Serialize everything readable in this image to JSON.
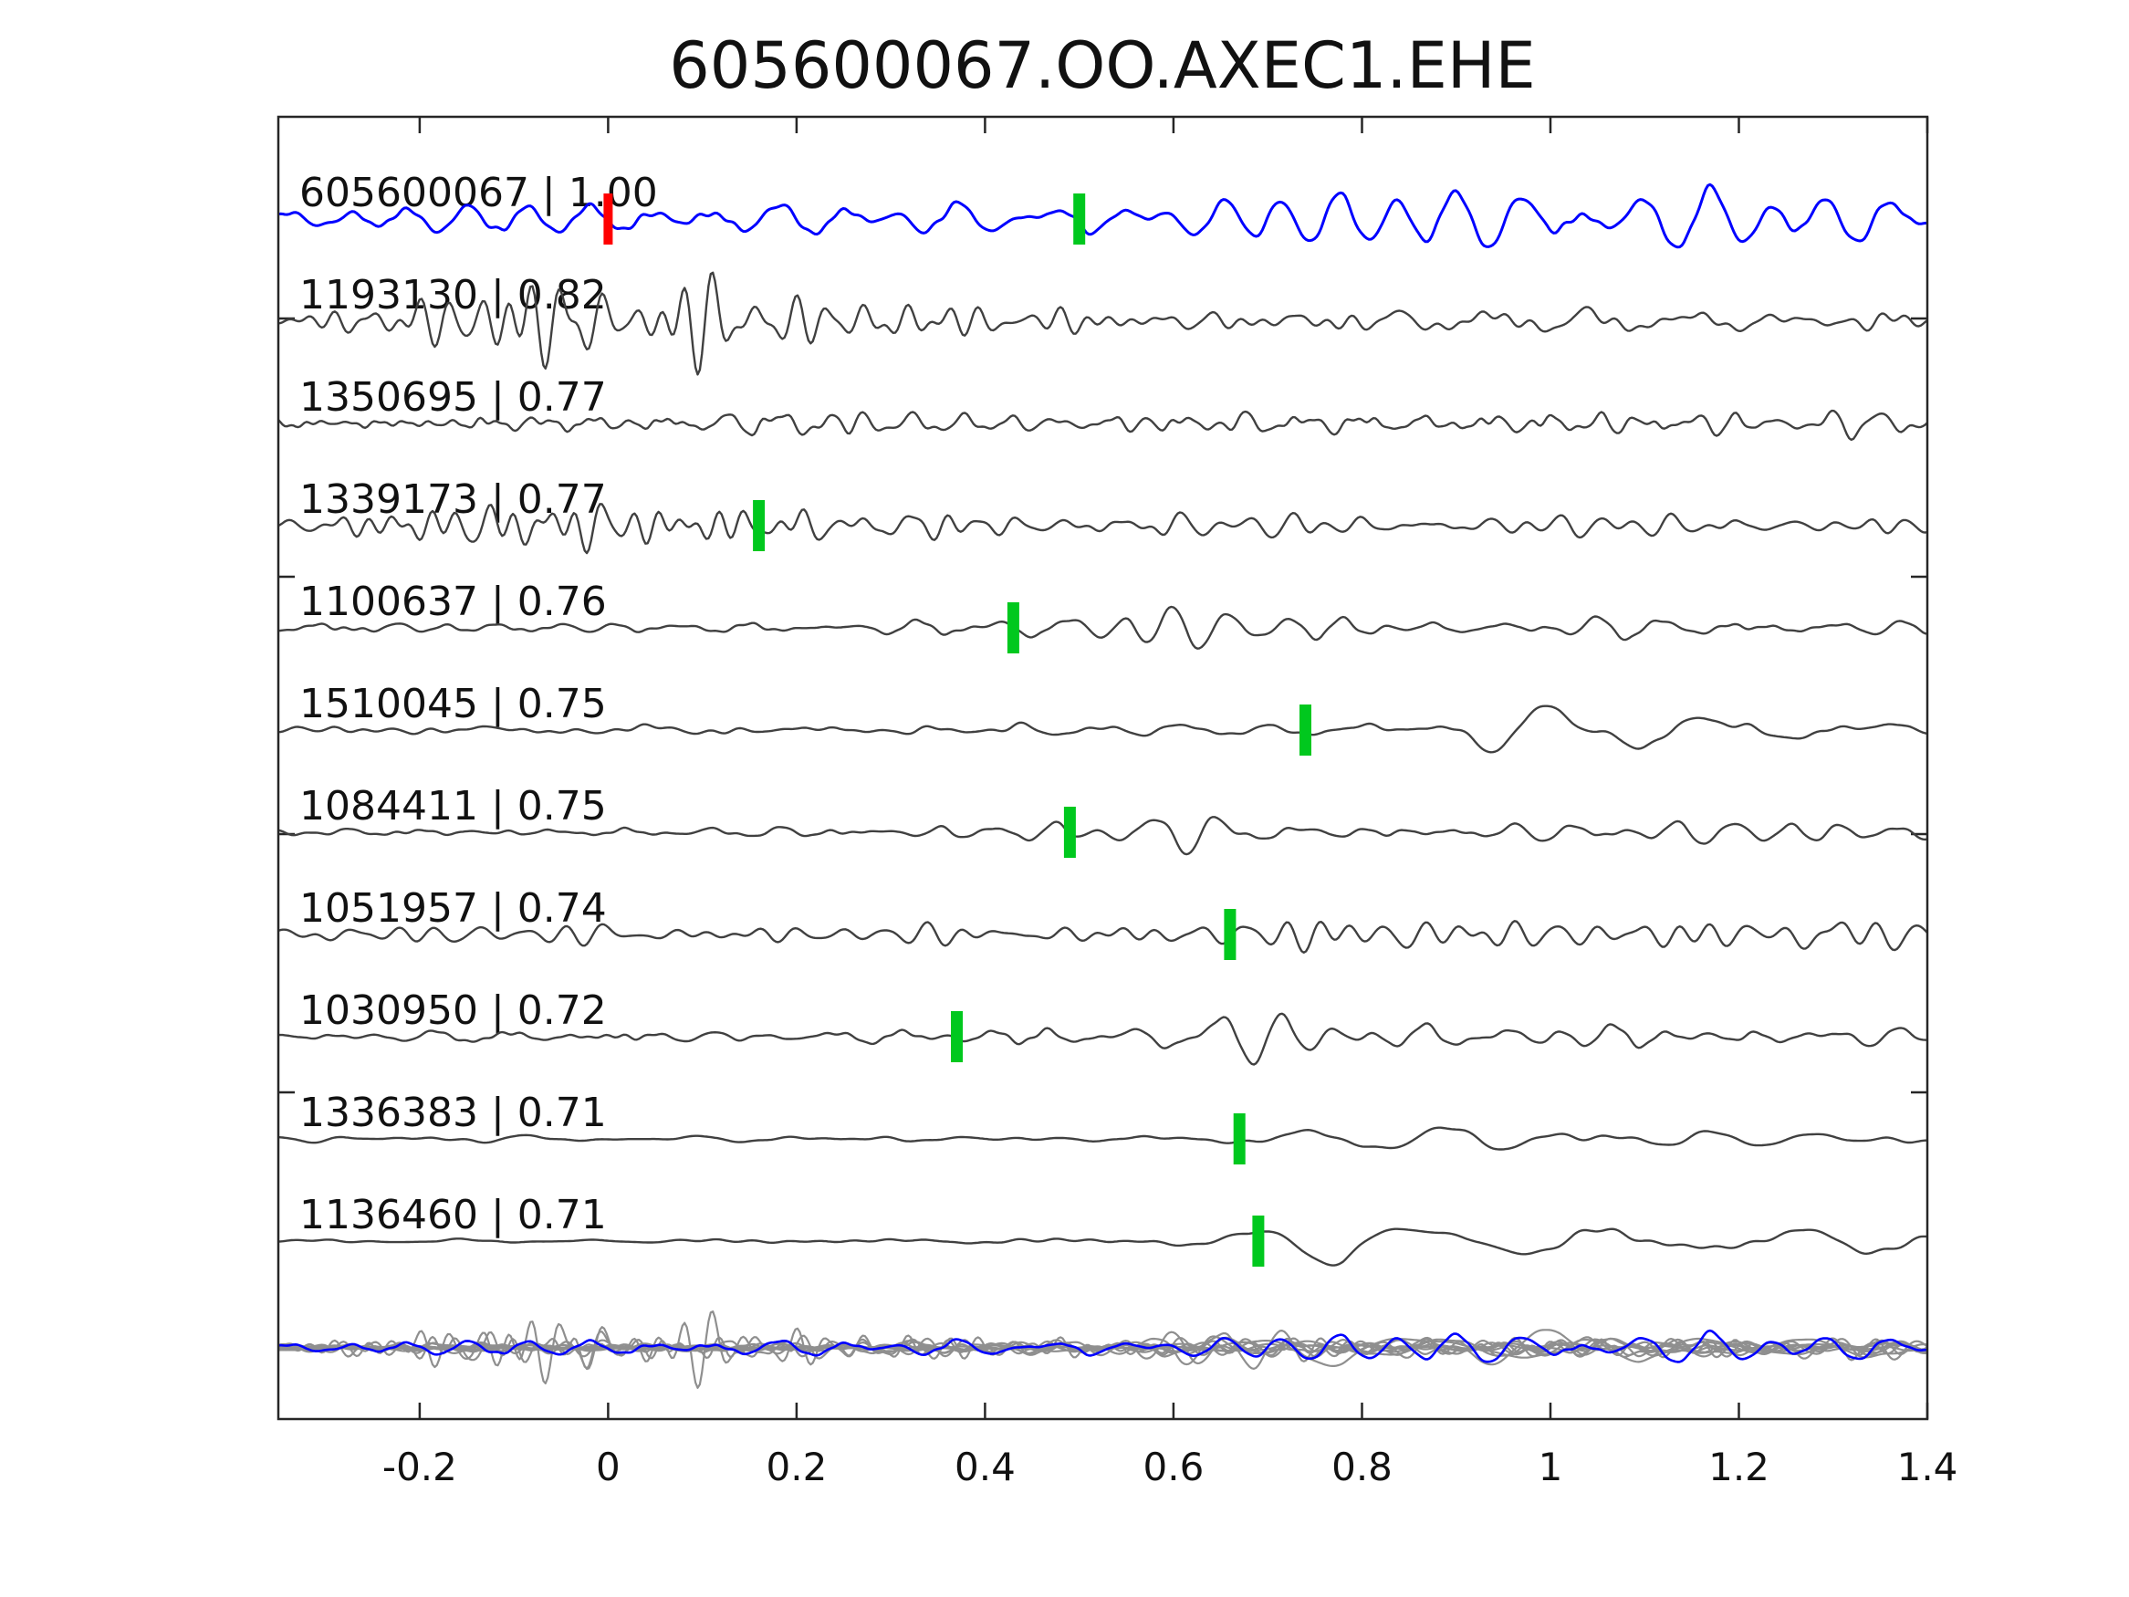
{
  "chart_data": {
    "type": "line",
    "title": "605600067.OO.AXEC1.EHE",
    "xlabel": "",
    "ylabel": "",
    "grid": false,
    "xlim": [
      -0.35,
      1.4
    ],
    "x_ticks": [
      -0.2,
      0,
      0.2,
      0.4,
      0.6,
      0.8,
      1,
      1.2,
      1.4
    ],
    "x_tick_labels": [
      "-0.2",
      "0",
      "0.2",
      "0.4",
      "0.6",
      "0.8",
      "1",
      "1.2",
      "1.4"
    ],
    "colors": {
      "template": "#0000ff",
      "detection": "#404040",
      "overlay_detection": "#8f8f8f",
      "pick_marker": "#00c81e",
      "template_start_marker": "#ff0000",
      "axis": "#262626",
      "text": "#111111",
      "background": "#ffffff"
    },
    "traces": [
      {
        "id": "605600067",
        "correlation": "1.00",
        "label": "605600067 | 1.00",
        "role": "template",
        "color": "#0000ff",
        "template_start_x": 0,
        "pick_x": 0.5,
        "synth": {
          "seed": 11,
          "bands": [
            {
              "freq": 16,
              "env": [
                [
                  -0.35,
                  14
                ],
                [
                  -0.1,
                  15
                ],
                [
                  0.05,
                  17
                ],
                [
                  0.3,
                  20
                ],
                [
                  0.45,
                  26
                ],
                [
                  0.55,
                  38
                ],
                [
                  0.68,
                  46
                ],
                [
                  0.8,
                  40
                ],
                [
                  0.95,
                  36
                ],
                [
                  1.1,
                  32
                ],
                [
                  1.25,
                  36
                ],
                [
                  1.4,
                  28
                ]
              ]
            },
            {
              "freq": 42,
              "env": [
                [
                  -0.35,
                  4
                ],
                [
                  1.4,
                  4
                ]
              ]
            }
          ]
        }
      },
      {
        "id": "1193130",
        "correlation": "0.82",
        "label": "1193130 | 0.82",
        "role": "detection",
        "color": "#404040",
        "template_start_x": null,
        "pick_x": null,
        "synth": {
          "seed": 22,
          "bands": [
            {
              "freq": 34,
              "env": [
                [
                  -0.35,
                  6
                ],
                [
                  -0.28,
                  22
                ],
                [
                  -0.2,
                  42
                ],
                [
                  -0.12,
                  55
                ],
                [
                  -0.02,
                  64
                ],
                [
                  0.08,
                  60
                ],
                [
                  0.18,
                  48
                ],
                [
                  0.28,
                  34
                ],
                [
                  0.38,
                  22
                ],
                [
                  0.5,
                  15
                ],
                [
                  0.7,
                  11
                ],
                [
                  1.0,
                  9
                ],
                [
                  1.4,
                  8
                ]
              ]
            },
            {
              "freq": 16,
              "env": [
                [
                  -0.35,
                  3
                ],
                [
                  0.3,
                  6
                ],
                [
                  0.5,
                  10
                ],
                [
                  0.8,
                  12
                ],
                [
                  1.1,
                  12
                ],
                [
                  1.4,
                  10
                ]
              ]
            }
          ]
        }
      },
      {
        "id": "1350695",
        "correlation": "0.77",
        "label": "1350695 | 0.77",
        "role": "detection",
        "color": "#404040",
        "template_start_x": null,
        "pick_x": null,
        "synth": {
          "seed": 33,
          "bands": [
            {
              "freq": 26,
              "env": [
                [
                  -0.35,
                  11
                ],
                [
                  0.15,
                  12
                ],
                [
                  0.22,
                  30
                ],
                [
                  0.28,
                  20
                ],
                [
                  0.45,
                  16
                ],
                [
                  0.7,
                  16
                ],
                [
                  1.0,
                  18
                ],
                [
                  1.2,
                  20
                ],
                [
                  1.4,
                  16
                ]
              ]
            },
            {
              "freq": 52,
              "env": [
                [
                  -0.35,
                  3
                ],
                [
                  0.2,
                  5
                ],
                [
                  0.35,
                  3
                ],
                [
                  1.4,
                  3
                ]
              ]
            }
          ]
        }
      },
      {
        "id": "1339173",
        "correlation": "0.77",
        "label": "1339173 | 0.77",
        "role": "detection",
        "color": "#404040",
        "template_start_x": null,
        "pick_x": 0.16,
        "synth": {
          "seed": 44,
          "bands": [
            {
              "freq": 32,
              "env": [
                [
                  -0.35,
                  7
                ],
                [
                  -0.25,
                  14
                ],
                [
                  -0.15,
                  34
                ],
                [
                  -0.05,
                  40
                ],
                [
                  0.05,
                  34
                ],
                [
                  0.15,
                  22
                ],
                [
                  0.3,
                  10
                ],
                [
                  0.5,
                  4
                ],
                [
                  1.4,
                  2
                ]
              ]
            },
            {
              "freq": 19,
              "env": [
                [
                  -0.35,
                  6
                ],
                [
                  0.2,
                  14
                ],
                [
                  0.5,
                  18
                ],
                [
                  0.8,
                  18
                ],
                [
                  1.1,
                  18
                ],
                [
                  1.4,
                  16
                ]
              ]
            }
          ]
        }
      },
      {
        "id": "1100637",
        "correlation": "0.76",
        "label": "1100637 | 0.76",
        "role": "detection",
        "color": "#404040",
        "template_start_x": null,
        "pick_x": 0.43,
        "synth": {
          "seed": 55,
          "bands": [
            {
              "freq": 18,
              "env": [
                [
                  -0.35,
                  7
                ],
                [
                  0.2,
                  8
                ],
                [
                  0.4,
                  10
                ],
                [
                  0.48,
                  22
                ],
                [
                  0.57,
                  30
                ],
                [
                  0.68,
                  18
                ],
                [
                  0.85,
                  12
                ],
                [
                  1.0,
                  14
                ],
                [
                  1.2,
                  11
                ],
                [
                  1.4,
                  9
                ]
              ]
            },
            {
              "freq": 40,
              "env": [
                [
                  -0.35,
                  2
                ],
                [
                  1.4,
                  2
                ]
              ]
            }
          ]
        }
      },
      {
        "id": "1510045",
        "correlation": "0.75",
        "label": "1510045 | 0.75",
        "role": "detection",
        "color": "#404040",
        "template_start_x": null,
        "pick_x": 0.74,
        "synth": {
          "seed": 66,
          "bands": [
            {
              "freq": 9,
              "env": [
                [
                  -0.35,
                  4
                ],
                [
                  0.4,
                  5
                ],
                [
                  0.65,
                  6
                ],
                [
                  0.78,
                  16
                ],
                [
                  0.88,
                  38
                ],
                [
                  1.0,
                  44
                ],
                [
                  1.1,
                  30
                ],
                [
                  1.25,
                  16
                ],
                [
                  1.4,
                  14
                ]
              ]
            },
            {
              "freq": 28,
              "env": [
                [
                  -0.35,
                  3
                ],
                [
                  0.6,
                  4
                ],
                [
                  1.4,
                  3
                ]
              ]
            }
          ]
        }
      },
      {
        "id": "1084411",
        "correlation": "0.75",
        "label": "1084411 | 0.75",
        "role": "detection",
        "color": "#404040",
        "template_start_x": null,
        "pick_x": 0.49,
        "synth": {
          "seed": 77,
          "bands": [
            {
              "freq": 18,
              "env": [
                [
                  -0.35,
                  8
                ],
                [
                  0.2,
                  9
                ],
                [
                  0.42,
                  11
                ],
                [
                  0.5,
                  24
                ],
                [
                  0.6,
                  36
                ],
                [
                  0.72,
                  26
                ],
                [
                  0.85,
                  14
                ],
                [
                  1.05,
                  12
                ],
                [
                  1.25,
                  13
                ],
                [
                  1.4,
                  10
                ]
              ]
            },
            {
              "freq": 42,
              "env": [
                [
                  -0.35,
                  2
                ],
                [
                  1.4,
                  2
                ]
              ]
            }
          ]
        }
      },
      {
        "id": "1051957",
        "correlation": "0.74",
        "label": "1051957 | 0.74",
        "role": "detection",
        "color": "#404040",
        "template_start_x": null,
        "pick_x": 0.66,
        "synth": {
          "seed": 88,
          "bands": [
            {
              "freq": 26,
              "env": [
                [
                  -0.35,
                  11
                ],
                [
                  0.2,
                  13
                ],
                [
                  0.5,
                  14
                ],
                [
                  0.62,
                  18
                ],
                [
                  0.72,
                  30
                ],
                [
                  0.85,
                  24
                ],
                [
                  1.0,
                  22
                ],
                [
                  1.2,
                  22
                ],
                [
                  1.4,
                  16
                ]
              ]
            },
            {
              "freq": 10,
              "env": [
                [
                  -0.35,
                  3
                ],
                [
                  0.6,
                  4
                ],
                [
                  0.8,
                  8
                ],
                [
                  1.1,
                  8
                ],
                [
                  1.4,
                  6
                ]
              ]
            }
          ]
        }
      },
      {
        "id": "1030950",
        "correlation": "0.72",
        "label": "1030950 | 0.72",
        "role": "detection",
        "color": "#404040",
        "template_start_x": null,
        "pick_x": 0.37,
        "synth": {
          "seed": 99,
          "bands": [
            {
              "freq": 17,
              "env": [
                [
                  -0.35,
                  7
                ],
                [
                  0.2,
                  9
                ],
                [
                  0.4,
                  11
                ],
                [
                  0.55,
                  16
                ],
                [
                  0.64,
                  32
                ],
                [
                  0.75,
                  26
                ],
                [
                  0.9,
                  18
                ],
                [
                  1.1,
                  14
                ],
                [
                  1.4,
                  12
                ]
              ]
            },
            {
              "freq": 38,
              "env": [
                [
                  -0.35,
                  2
                ],
                [
                  0.5,
                  3
                ],
                [
                  1.4,
                  2
                ]
              ]
            }
          ]
        }
      },
      {
        "id": "1336383",
        "correlation": "0.71",
        "label": "1336383 | 0.71",
        "role": "detection",
        "color": "#404040",
        "template_start_x": null,
        "pick_x": 0.67,
        "synth": {
          "seed": 110,
          "bands": [
            {
              "freq": 9,
              "env": [
                [
                  -0.35,
                  3
                ],
                [
                  0.45,
                  4
                ],
                [
                  0.62,
                  6
                ],
                [
                  0.72,
                  20
                ],
                [
                  0.82,
                  30
                ],
                [
                  0.95,
                  28
                ],
                [
                  1.08,
                  24
                ],
                [
                  1.25,
                  13
                ],
                [
                  1.4,
                  9
                ]
              ]
            },
            {
              "freq": 24,
              "env": [
                [
                  -0.35,
                  2
                ],
                [
                  0.6,
                  2
                ],
                [
                  0.8,
                  4
                ],
                [
                  1.4,
                  3
                ]
              ]
            }
          ]
        }
      },
      {
        "id": "1136460",
        "correlation": "0.71",
        "label": "1136460 | 0.71",
        "role": "detection",
        "color": "#404040",
        "template_start_x": null,
        "pick_x": 0.69,
        "synth": {
          "seed": 121,
          "bands": [
            {
              "freq": 8.5,
              "env": [
                [
                  -0.35,
                  2.5
                ],
                [
                  0.4,
                  3
                ],
                [
                  0.58,
                  5
                ],
                [
                  0.68,
                  10
                ],
                [
                  0.78,
                  32
                ],
                [
                  0.9,
                  28
                ],
                [
                  1.05,
                  20
                ],
                [
                  1.25,
                  15
                ],
                [
                  1.4,
                  11
                ]
              ]
            },
            {
              "freq": 22,
              "env": [
                [
                  -0.35,
                  1.5
                ],
                [
                  0.6,
                  2
                ],
                [
                  0.9,
                  4
                ],
                [
                  1.4,
                  3
                ]
              ]
            }
          ]
        }
      }
    ],
    "overlay": {
      "detection_color": "#8f8f8f",
      "template_color": "#0000ff"
    }
  }
}
